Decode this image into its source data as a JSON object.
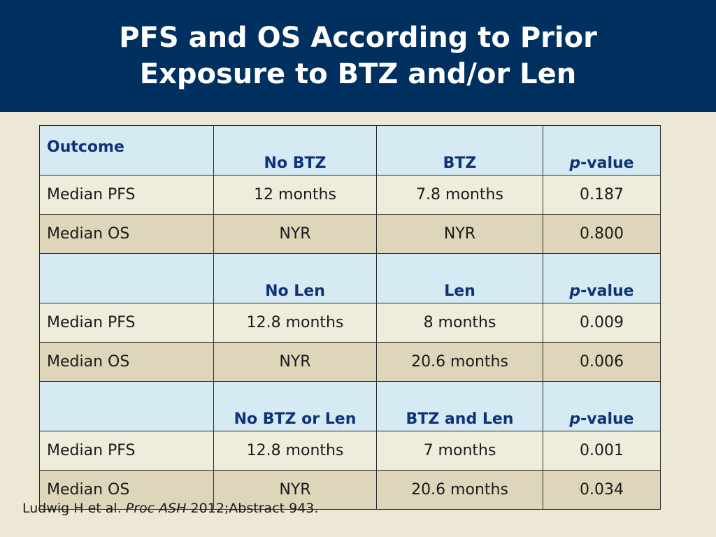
{
  "slide": {
    "title_line1": "PFS and OS According to Prior",
    "title_line2": "Exposure to BTZ and/or Len"
  },
  "table": {
    "sections": [
      {
        "header": {
          "outcome": "Outcome",
          "col1": "No BTZ",
          "col2": "BTZ",
          "pvalue_p": "p",
          "pvalue_rest": "-value"
        },
        "rows": [
          {
            "label": "Median PFS",
            "col1": "12 months",
            "col2": "7.8 months",
            "pvalue": "0.187"
          },
          {
            "label": "Median OS",
            "col1": "NYR",
            "col2": "NYR",
            "pvalue": "0.800"
          }
        ]
      },
      {
        "header": {
          "outcome": "",
          "col1": "No Len",
          "col2": "Len",
          "pvalue_p": "p",
          "pvalue_rest": "-value"
        },
        "rows": [
          {
            "label": "Median PFS",
            "col1": "12.8 months",
            "col2": "8 months",
            "pvalue": "0.009"
          },
          {
            "label": "Median OS",
            "col1": "NYR",
            "col2": "20.6 months",
            "pvalue": "0.006"
          }
        ]
      },
      {
        "header": {
          "outcome": "",
          "col1": "No BTZ or Len",
          "col2": "BTZ and Len",
          "pvalue_p": "p",
          "pvalue_rest": "-value"
        },
        "rows": [
          {
            "label": "Median PFS",
            "col1": "12.8 months",
            "col2": "7 months",
            "pvalue": "0.001"
          },
          {
            "label": "Median OS",
            "col1": "NYR",
            "col2": "20.6 months",
            "pvalue": "0.034"
          }
        ]
      }
    ]
  },
  "footer": {
    "authors": "Ludwig H et al. ",
    "journal": "Proc ASH",
    "rest": " 2012;Abstract 943."
  }
}
